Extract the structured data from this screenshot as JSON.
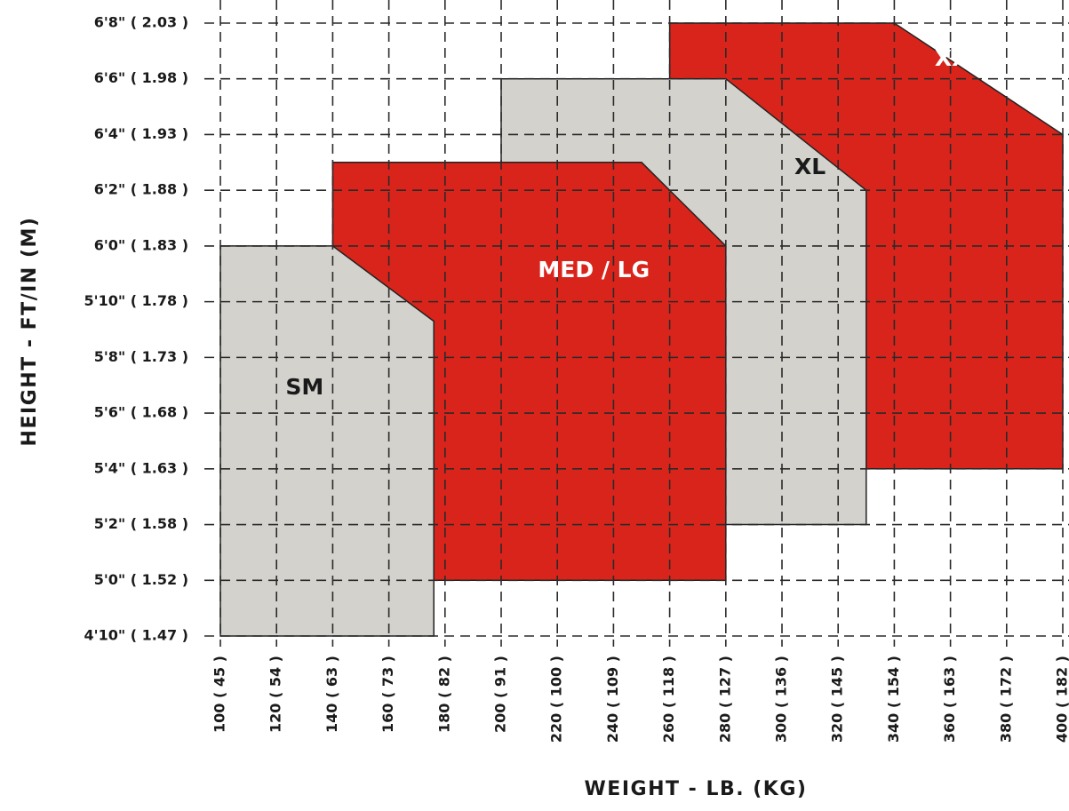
{
  "chart_data": {
    "type": "area",
    "title": "",
    "xlabel": "WEIGHT - LB. (KG)",
    "ylabel": "HEIGHT - FT/IN (M)",
    "xlim": [
      100,
      400
    ],
    "ylim": [
      58,
      80
    ],
    "grid": true,
    "x_ticks": [
      {
        "value": 100,
        "label": "100 ( 45 )"
      },
      {
        "value": 120,
        "label": "120 ( 54 )"
      },
      {
        "value": 140,
        "label": "140 ( 63 )"
      },
      {
        "value": 160,
        "label": "160 ( 73 )"
      },
      {
        "value": 180,
        "label": "180 ( 82 )"
      },
      {
        "value": 200,
        "label": "200 ( 91 )"
      },
      {
        "value": 220,
        "label": "220 ( 100 )"
      },
      {
        "value": 240,
        "label": "240 ( 109 )"
      },
      {
        "value": 260,
        "label": "260 ( 118 )"
      },
      {
        "value": 280,
        "label": "280 ( 127 )"
      },
      {
        "value": 300,
        "label": "300 ( 136 )"
      },
      {
        "value": 320,
        "label": "320 ( 145 )"
      },
      {
        "value": 340,
        "label": "340 ( 154 )"
      },
      {
        "value": 360,
        "label": "360 ( 163 )"
      },
      {
        "value": 380,
        "label": "380 ( 172 )"
      },
      {
        "value": 400,
        "label": "400 ( 182 )"
      }
    ],
    "y_ticks": [
      {
        "value": 58,
        "label": "4'10\" ( 1.47 )"
      },
      {
        "value": 60,
        "label": "5'0\" ( 1.52 )"
      },
      {
        "value": 62,
        "label": "5'2\" ( 1.58 )"
      },
      {
        "value": 64,
        "label": "5'4\" ( 1.63 )"
      },
      {
        "value": 66,
        "label": "5'6\" ( 1.68 )"
      },
      {
        "value": 68,
        "label": "5'8\" ( 1.73 )"
      },
      {
        "value": 70,
        "label": "5'10\"  ( 1.78 )"
      },
      {
        "value": 72,
        "label": "6'0\" ( 1.83 )"
      },
      {
        "value": 74,
        "label": "6'2\" ( 1.88 )"
      },
      {
        "value": 76,
        "label": "6'4\" ( 1.93 )"
      },
      {
        "value": 78,
        "label": "6'6\" ( 1.98 )"
      },
      {
        "value": 80,
        "label": "6'8\" ( 2.03 )"
      }
    ],
    "regions": [
      {
        "name": "XXL",
        "color": "#d9241b",
        "label_color": "#ffffff",
        "label_at": [
          363,
          78.7
        ],
        "polygon": [
          [
            260,
            64
          ],
          [
            260,
            80
          ],
          [
            340,
            80
          ],
          [
            400,
            76
          ],
          [
            400,
            64
          ]
        ]
      },
      {
        "name": "XL",
        "color": "#d3d2cd",
        "label_color": "#1a1a1a",
        "label_at": [
          310,
          74.8
        ],
        "polygon": [
          [
            200,
            62
          ],
          [
            200,
            78
          ],
          [
            280,
            78
          ],
          [
            330,
            74
          ],
          [
            330,
            62
          ]
        ]
      },
      {
        "name": "MED / LG",
        "color": "#d9241b",
        "label_color": "#ffffff",
        "label_at": [
          233,
          71.1
        ],
        "polygon": [
          [
            140,
            60
          ],
          [
            140,
            75
          ],
          [
            250,
            75
          ],
          [
            280,
            72
          ],
          [
            280,
            60
          ]
        ]
      },
      {
        "name": "SM",
        "color": "#d3d2cd",
        "label_color": "#1a1a1a",
        "label_at": [
          130,
          66.9
        ],
        "polygon": [
          [
            100,
            58
          ],
          [
            100,
            72
          ],
          [
            140,
            72
          ],
          [
            176,
            69.3
          ],
          [
            176,
            58
          ]
        ]
      }
    ]
  }
}
